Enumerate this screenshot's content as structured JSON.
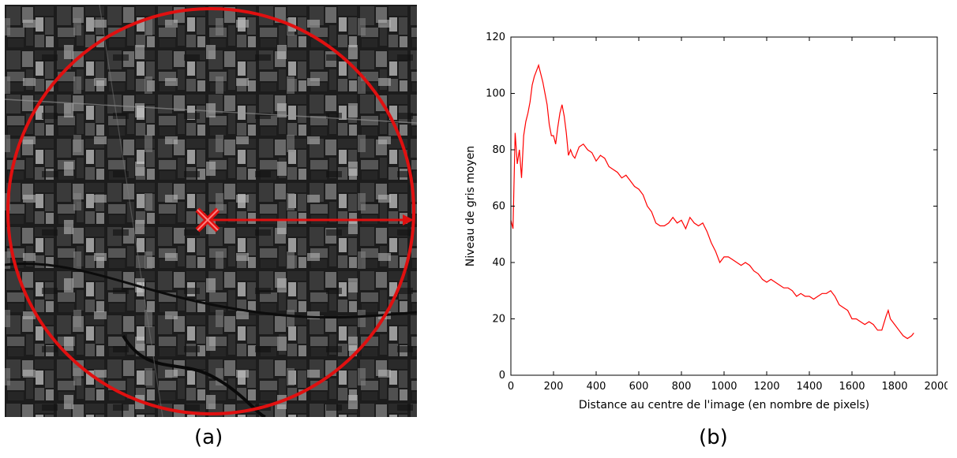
{
  "captions": {
    "a": "(a)",
    "b": "(b)"
  },
  "colors": {
    "series": "#ff0000",
    "overlay": "#e01010"
  },
  "chart_data": {
    "type": "line",
    "title": "",
    "xlabel": "Distance au centre de l'image (en nombre de pixels)",
    "ylabel": "Niveau de gris moyen",
    "xlim": [
      0,
      2000
    ],
    "ylim": [
      0,
      120
    ],
    "xticks": [
      0,
      200,
      400,
      600,
      800,
      1000,
      1200,
      1400,
      1600,
      1800,
      2000
    ],
    "yticks": [
      0,
      20,
      40,
      60,
      80,
      100,
      120
    ],
    "grid": false,
    "series": [
      {
        "x": [
          0,
          10,
          20,
          30,
          40,
          50,
          60,
          70,
          80,
          90,
          100,
          110,
          120,
          130,
          140,
          150,
          160,
          170,
          180,
          190,
          200,
          210,
          220,
          230,
          240,
          250,
          260,
          270,
          280,
          290,
          300,
          320,
          340,
          360,
          380,
          400,
          420,
          440,
          460,
          480,
          500,
          520,
          540,
          560,
          580,
          600,
          620,
          640,
          660,
          680,
          700,
          720,
          740,
          760,
          780,
          800,
          820,
          840,
          860,
          880,
          900,
          920,
          940,
          960,
          980,
          1000,
          1020,
          1040,
          1060,
          1080,
          1100,
          1120,
          1140,
          1160,
          1180,
          1200,
          1220,
          1240,
          1260,
          1280,
          1300,
          1320,
          1340,
          1360,
          1380,
          1400,
          1420,
          1440,
          1460,
          1480,
          1500,
          1520,
          1540,
          1560,
          1580,
          1600,
          1620,
          1640,
          1660,
          1680,
          1700,
          1720,
          1740,
          1760,
          1770,
          1780,
          1800,
          1820,
          1840,
          1860,
          1880,
          1890
        ],
        "y": [
          55,
          52,
          86,
          75,
          80,
          70,
          85,
          90,
          93,
          97,
          103,
          106,
          108,
          110,
          107,
          104,
          100,
          96,
          89,
          85,
          85,
          82,
          88,
          93,
          96,
          92,
          86,
          78,
          80,
          78,
          77,
          81,
          82,
          80,
          79,
          76,
          78,
          77,
          74,
          73,
          72,
          70,
          71,
          69,
          67,
          66,
          64,
          60,
          58,
          54,
          53,
          53,
          54,
          56,
          54,
          55,
          52,
          56,
          54,
          53,
          54,
          51,
          47,
          44,
          40,
          42,
          42,
          41,
          40,
          39,
          40,
          39,
          37,
          36,
          34,
          33,
          34,
          33,
          32,
          31,
          31,
          30,
          28,
          29,
          28,
          28,
          27,
          28,
          29,
          29,
          30,
          28,
          25,
          24,
          23,
          20,
          20,
          19,
          18,
          19,
          18,
          16,
          16,
          21,
          23,
          20,
          18,
          16,
          14,
          13,
          14,
          15
        ]
      }
    ]
  }
}
